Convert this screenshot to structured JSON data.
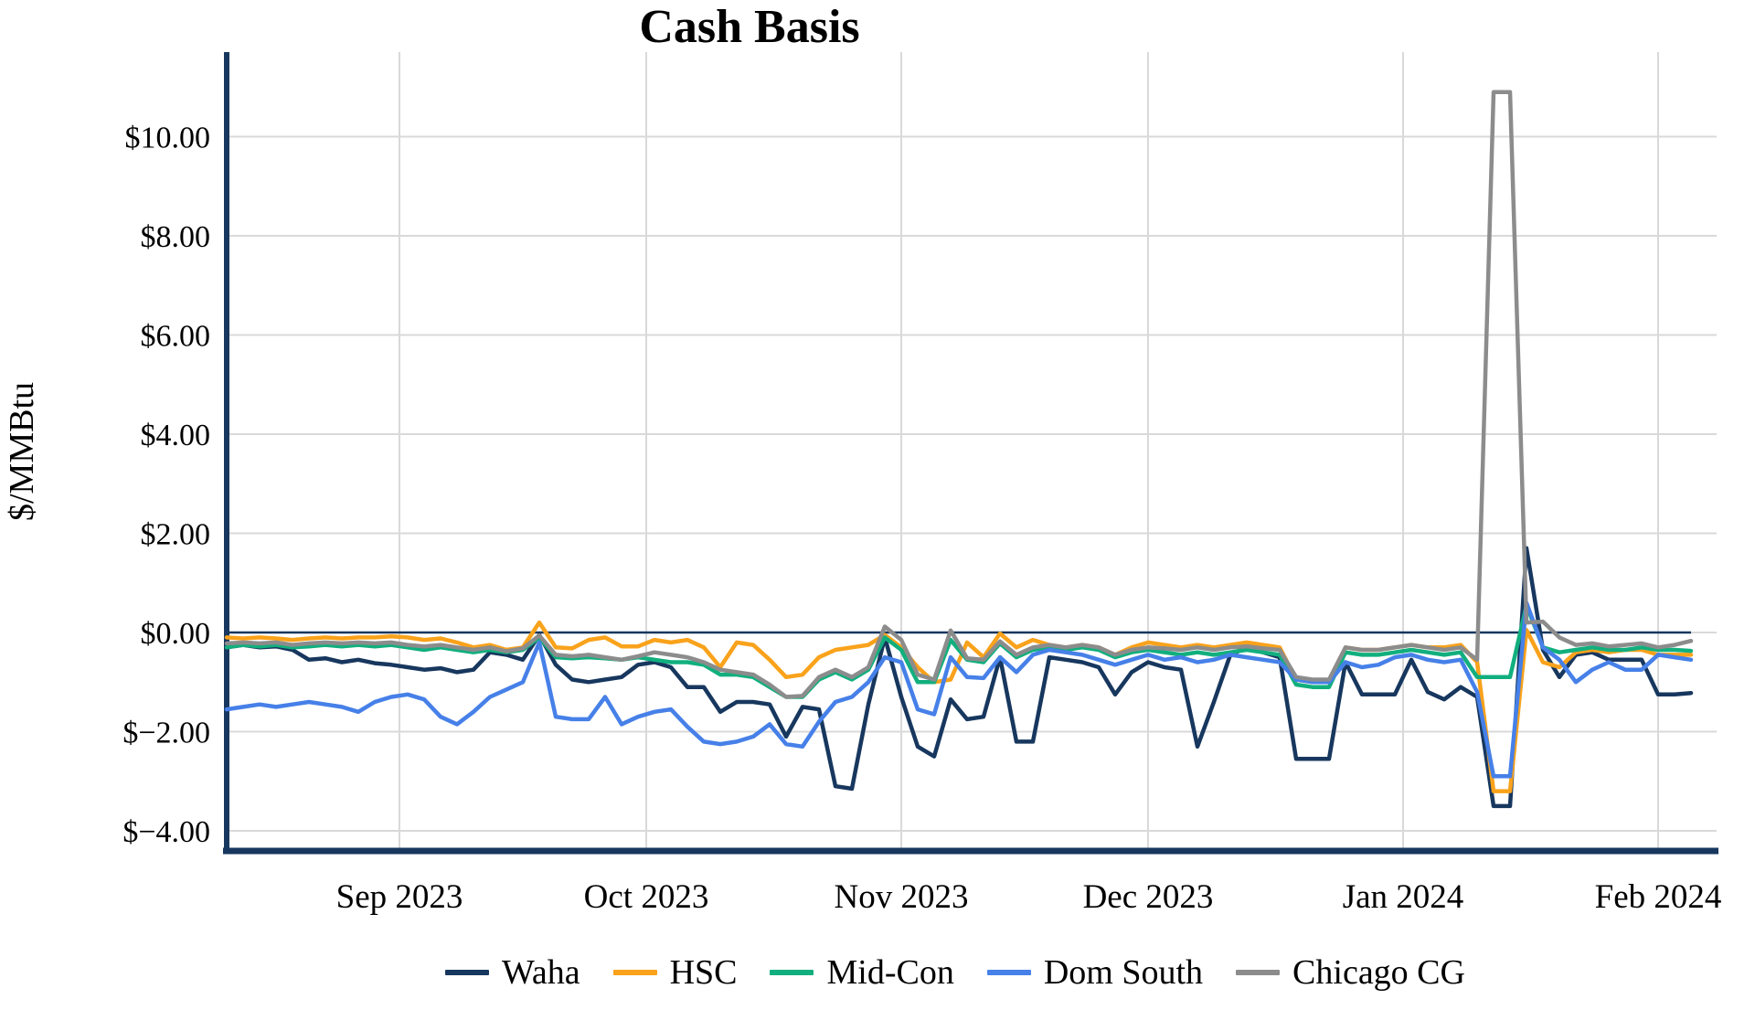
{
  "title": "Cash Basis",
  "y_axis": {
    "label": "$/MMBtu",
    "tick_labels": [
      "$10.00",
      "$8.00",
      "$6.00",
      "$4.00",
      "$2.00",
      "$0.00",
      "$−2.00",
      "$−4.00"
    ],
    "tick_values": [
      10,
      8,
      6,
      4,
      2,
      0,
      -2,
      -4
    ]
  },
  "x_axis": {
    "tick_labels": [
      "Sep 2023",
      "Oct 2023",
      "Nov 2023",
      "Dec 2023",
      "Jan 2024",
      "Feb 2024"
    ],
    "tick_day_offsets": [
      21,
      51,
      82,
      112,
      143,
      174
    ]
  },
  "legend": [
    {
      "label": "Waha",
      "color": "#17375E"
    },
    {
      "label": "HSC",
      "color": "#F9A21B"
    },
    {
      "label": "Mid-Con",
      "color": "#12AF7E"
    },
    {
      "label": "Dom South",
      "color": "#4680E8"
    },
    {
      "label": "Chicago CG",
      "color": "#8C8C8C"
    }
  ],
  "colors": {
    "axis": "#17375E",
    "zero_line": "#17375E",
    "gridline": "#D9D9D9",
    "background": "#FFFFFF"
  },
  "chart_data": {
    "type": "line",
    "title": "Cash Basis",
    "ylabel": "$/MMBtu",
    "xlabel": "",
    "ylim": [
      -4.6,
      11.6
    ],
    "grid": true,
    "legend_position": "bottom",
    "x_unit": "days",
    "x_step_days": 2,
    "x_range_days": [
      0,
      178
    ],
    "month_ticks": [
      {
        "label": "Sep 2023",
        "day": 21
      },
      {
        "label": "Oct 2023",
        "day": 51
      },
      {
        "label": "Nov 2023",
        "day": 82
      },
      {
        "label": "Dec 2023",
        "day": 112
      },
      {
        "label": "Jan 2024",
        "day": 143
      },
      {
        "label": "Feb 2024",
        "day": 174
      }
    ],
    "series": [
      {
        "name": "Waha",
        "color": "#17375E",
        "values": [
          -0.3,
          -0.25,
          -0.3,
          -0.28,
          -0.35,
          -0.55,
          -0.52,
          -0.6,
          -0.55,
          -0.62,
          -0.65,
          -0.7,
          -0.75,
          -0.72,
          -0.8,
          -0.75,
          -0.4,
          -0.45,
          -0.55,
          -0.05,
          -0.65,
          -0.95,
          -1.0,
          -0.95,
          -0.9,
          -0.65,
          -0.6,
          -0.7,
          -1.1,
          -1.1,
          -1.6,
          -1.4,
          -1.4,
          -1.45,
          -2.1,
          -1.5,
          -1.55,
          -3.1,
          -3.15,
          -1.45,
          -0.1,
          -1.3,
          -2.3,
          -2.5,
          -1.35,
          -1.75,
          -1.7,
          -0.5,
          -2.2,
          -2.2,
          -0.5,
          -0.55,
          -0.6,
          -0.7,
          -1.25,
          -0.8,
          -0.6,
          -0.7,
          -0.75,
          -2.3,
          -1.4,
          -0.45,
          -0.3,
          -0.4,
          -0.5,
          -2.55,
          -2.55,
          -2.55,
          -0.6,
          -1.25,
          -1.25,
          -1.25,
          -0.55,
          -1.2,
          -1.35,
          -1.1,
          -1.3,
          -3.5,
          -3.5,
          1.7,
          -0.35,
          -0.9,
          -0.45,
          -0.4,
          -0.55,
          -0.55,
          -0.55,
          -1.25,
          -1.25,
          -1.22
        ]
      },
      {
        "name": "HSC",
        "color": "#F9A21B",
        "values": [
          -0.1,
          -0.12,
          -0.1,
          -0.12,
          -0.15,
          -0.12,
          -0.1,
          -0.12,
          -0.1,
          -0.1,
          -0.08,
          -0.1,
          -0.15,
          -0.12,
          -0.2,
          -0.3,
          -0.25,
          -0.35,
          -0.3,
          0.2,
          -0.3,
          -0.32,
          -0.15,
          -0.1,
          -0.28,
          -0.28,
          -0.15,
          -0.2,
          -0.15,
          -0.3,
          -0.7,
          -0.2,
          -0.25,
          -0.55,
          -0.9,
          -0.85,
          -0.5,
          -0.35,
          -0.3,
          -0.25,
          -0.05,
          -0.3,
          -0.7,
          -1.0,
          -0.95,
          -0.2,
          -0.5,
          -0.02,
          -0.3,
          -0.15,
          -0.25,
          -0.3,
          -0.25,
          -0.3,
          -0.45,
          -0.3,
          -0.2,
          -0.25,
          -0.3,
          -0.25,
          -0.3,
          -0.25,
          -0.2,
          -0.25,
          -0.3,
          -0.95,
          -1.0,
          -1.0,
          -0.3,
          -0.35,
          -0.35,
          -0.3,
          -0.25,
          -0.3,
          -0.3,
          -0.25,
          -0.6,
          -3.2,
          -3.2,
          0.05,
          -0.6,
          -0.7,
          -0.4,
          -0.35,
          -0.4,
          -0.35,
          -0.35,
          -0.45,
          -0.45,
          -0.45
        ]
      },
      {
        "name": "Mid-Con",
        "color": "#12AF7E",
        "values": [
          -0.3,
          -0.25,
          -0.28,
          -0.25,
          -0.3,
          -0.28,
          -0.25,
          -0.28,
          -0.25,
          -0.28,
          -0.25,
          -0.3,
          -0.35,
          -0.3,
          -0.35,
          -0.4,
          -0.35,
          -0.4,
          -0.35,
          -0.1,
          -0.5,
          -0.52,
          -0.5,
          -0.52,
          -0.55,
          -0.5,
          -0.55,
          -0.6,
          -0.6,
          -0.65,
          -0.85,
          -0.85,
          -0.9,
          -1.1,
          -1.3,
          -1.3,
          -0.95,
          -0.8,
          -0.95,
          -0.75,
          -0.1,
          -0.35,
          -1.0,
          -1.0,
          -0.15,
          -0.55,
          -0.6,
          -0.22,
          -0.5,
          -0.35,
          -0.3,
          -0.35,
          -0.3,
          -0.35,
          -0.5,
          -0.4,
          -0.35,
          -0.4,
          -0.45,
          -0.4,
          -0.45,
          -0.4,
          -0.35,
          -0.4,
          -0.45,
          -1.05,
          -1.1,
          -1.1,
          -0.4,
          -0.45,
          -0.45,
          -0.4,
          -0.35,
          -0.4,
          -0.45,
          -0.4,
          -0.9,
          -0.9,
          -0.9,
          0.55,
          -0.3,
          -0.4,
          -0.35,
          -0.3,
          -0.35,
          -0.35,
          -0.3,
          -0.35,
          -0.35,
          -0.37
        ]
      },
      {
        "name": "Dom South",
        "color": "#4680E8",
        "values": [
          -1.55,
          -1.5,
          -1.45,
          -1.5,
          -1.45,
          -1.4,
          -1.45,
          -1.5,
          -1.6,
          -1.4,
          -1.3,
          -1.25,
          -1.35,
          -1.7,
          -1.85,
          -1.6,
          -1.3,
          -1.15,
          -1.0,
          -0.2,
          -1.7,
          -1.75,
          -1.75,
          -1.3,
          -1.85,
          -1.7,
          -1.6,
          -1.55,
          -1.9,
          -2.2,
          -2.25,
          -2.2,
          -2.1,
          -1.85,
          -2.25,
          -2.3,
          -1.8,
          -1.4,
          -1.3,
          -1.0,
          -0.5,
          -0.6,
          -1.55,
          -1.65,
          -0.5,
          -0.9,
          -0.92,
          -0.5,
          -0.8,
          -0.45,
          -0.35,
          -0.4,
          -0.45,
          -0.55,
          -0.65,
          -0.55,
          -0.45,
          -0.55,
          -0.5,
          -0.6,
          -0.55,
          -0.45,
          -0.5,
          -0.55,
          -0.6,
          -0.95,
          -1.0,
          -1.0,
          -0.6,
          -0.7,
          -0.65,
          -0.5,
          -0.45,
          -0.55,
          -0.6,
          -0.55,
          -1.2,
          -2.9,
          -2.9,
          0.6,
          -0.3,
          -0.55,
          -1.0,
          -0.75,
          -0.6,
          -0.75,
          -0.75,
          -0.45,
          -0.5,
          -0.55
        ]
      },
      {
        "name": "Chicago CG",
        "color": "#8C8C8C",
        "values": [
          -0.22,
          -0.2,
          -0.22,
          -0.2,
          -0.25,
          -0.22,
          -0.2,
          -0.22,
          -0.2,
          -0.22,
          -0.2,
          -0.25,
          -0.28,
          -0.25,
          -0.3,
          -0.35,
          -0.3,
          -0.38,
          -0.32,
          -0.06,
          -0.45,
          -0.48,
          -0.45,
          -0.5,
          -0.55,
          -0.48,
          -0.4,
          -0.45,
          -0.5,
          -0.6,
          -0.75,
          -0.8,
          -0.85,
          -1.05,
          -1.3,
          -1.28,
          -0.9,
          -0.75,
          -0.9,
          -0.7,
          0.12,
          -0.15,
          -0.85,
          -0.95,
          0.04,
          -0.52,
          -0.55,
          -0.18,
          -0.45,
          -0.3,
          -0.25,
          -0.3,
          -0.25,
          -0.3,
          -0.45,
          -0.35,
          -0.3,
          -0.32,
          -0.35,
          -0.3,
          -0.35,
          -0.3,
          -0.28,
          -0.32,
          -0.35,
          -0.9,
          -0.95,
          -0.95,
          -0.3,
          -0.35,
          -0.35,
          -0.3,
          -0.25,
          -0.3,
          -0.35,
          -0.3,
          -0.55,
          10.9,
          10.9,
          0.2,
          0.22,
          -0.1,
          -0.25,
          -0.22,
          -0.28,
          -0.25,
          -0.22,
          -0.3,
          -0.25,
          -0.17
        ]
      }
    ]
  }
}
